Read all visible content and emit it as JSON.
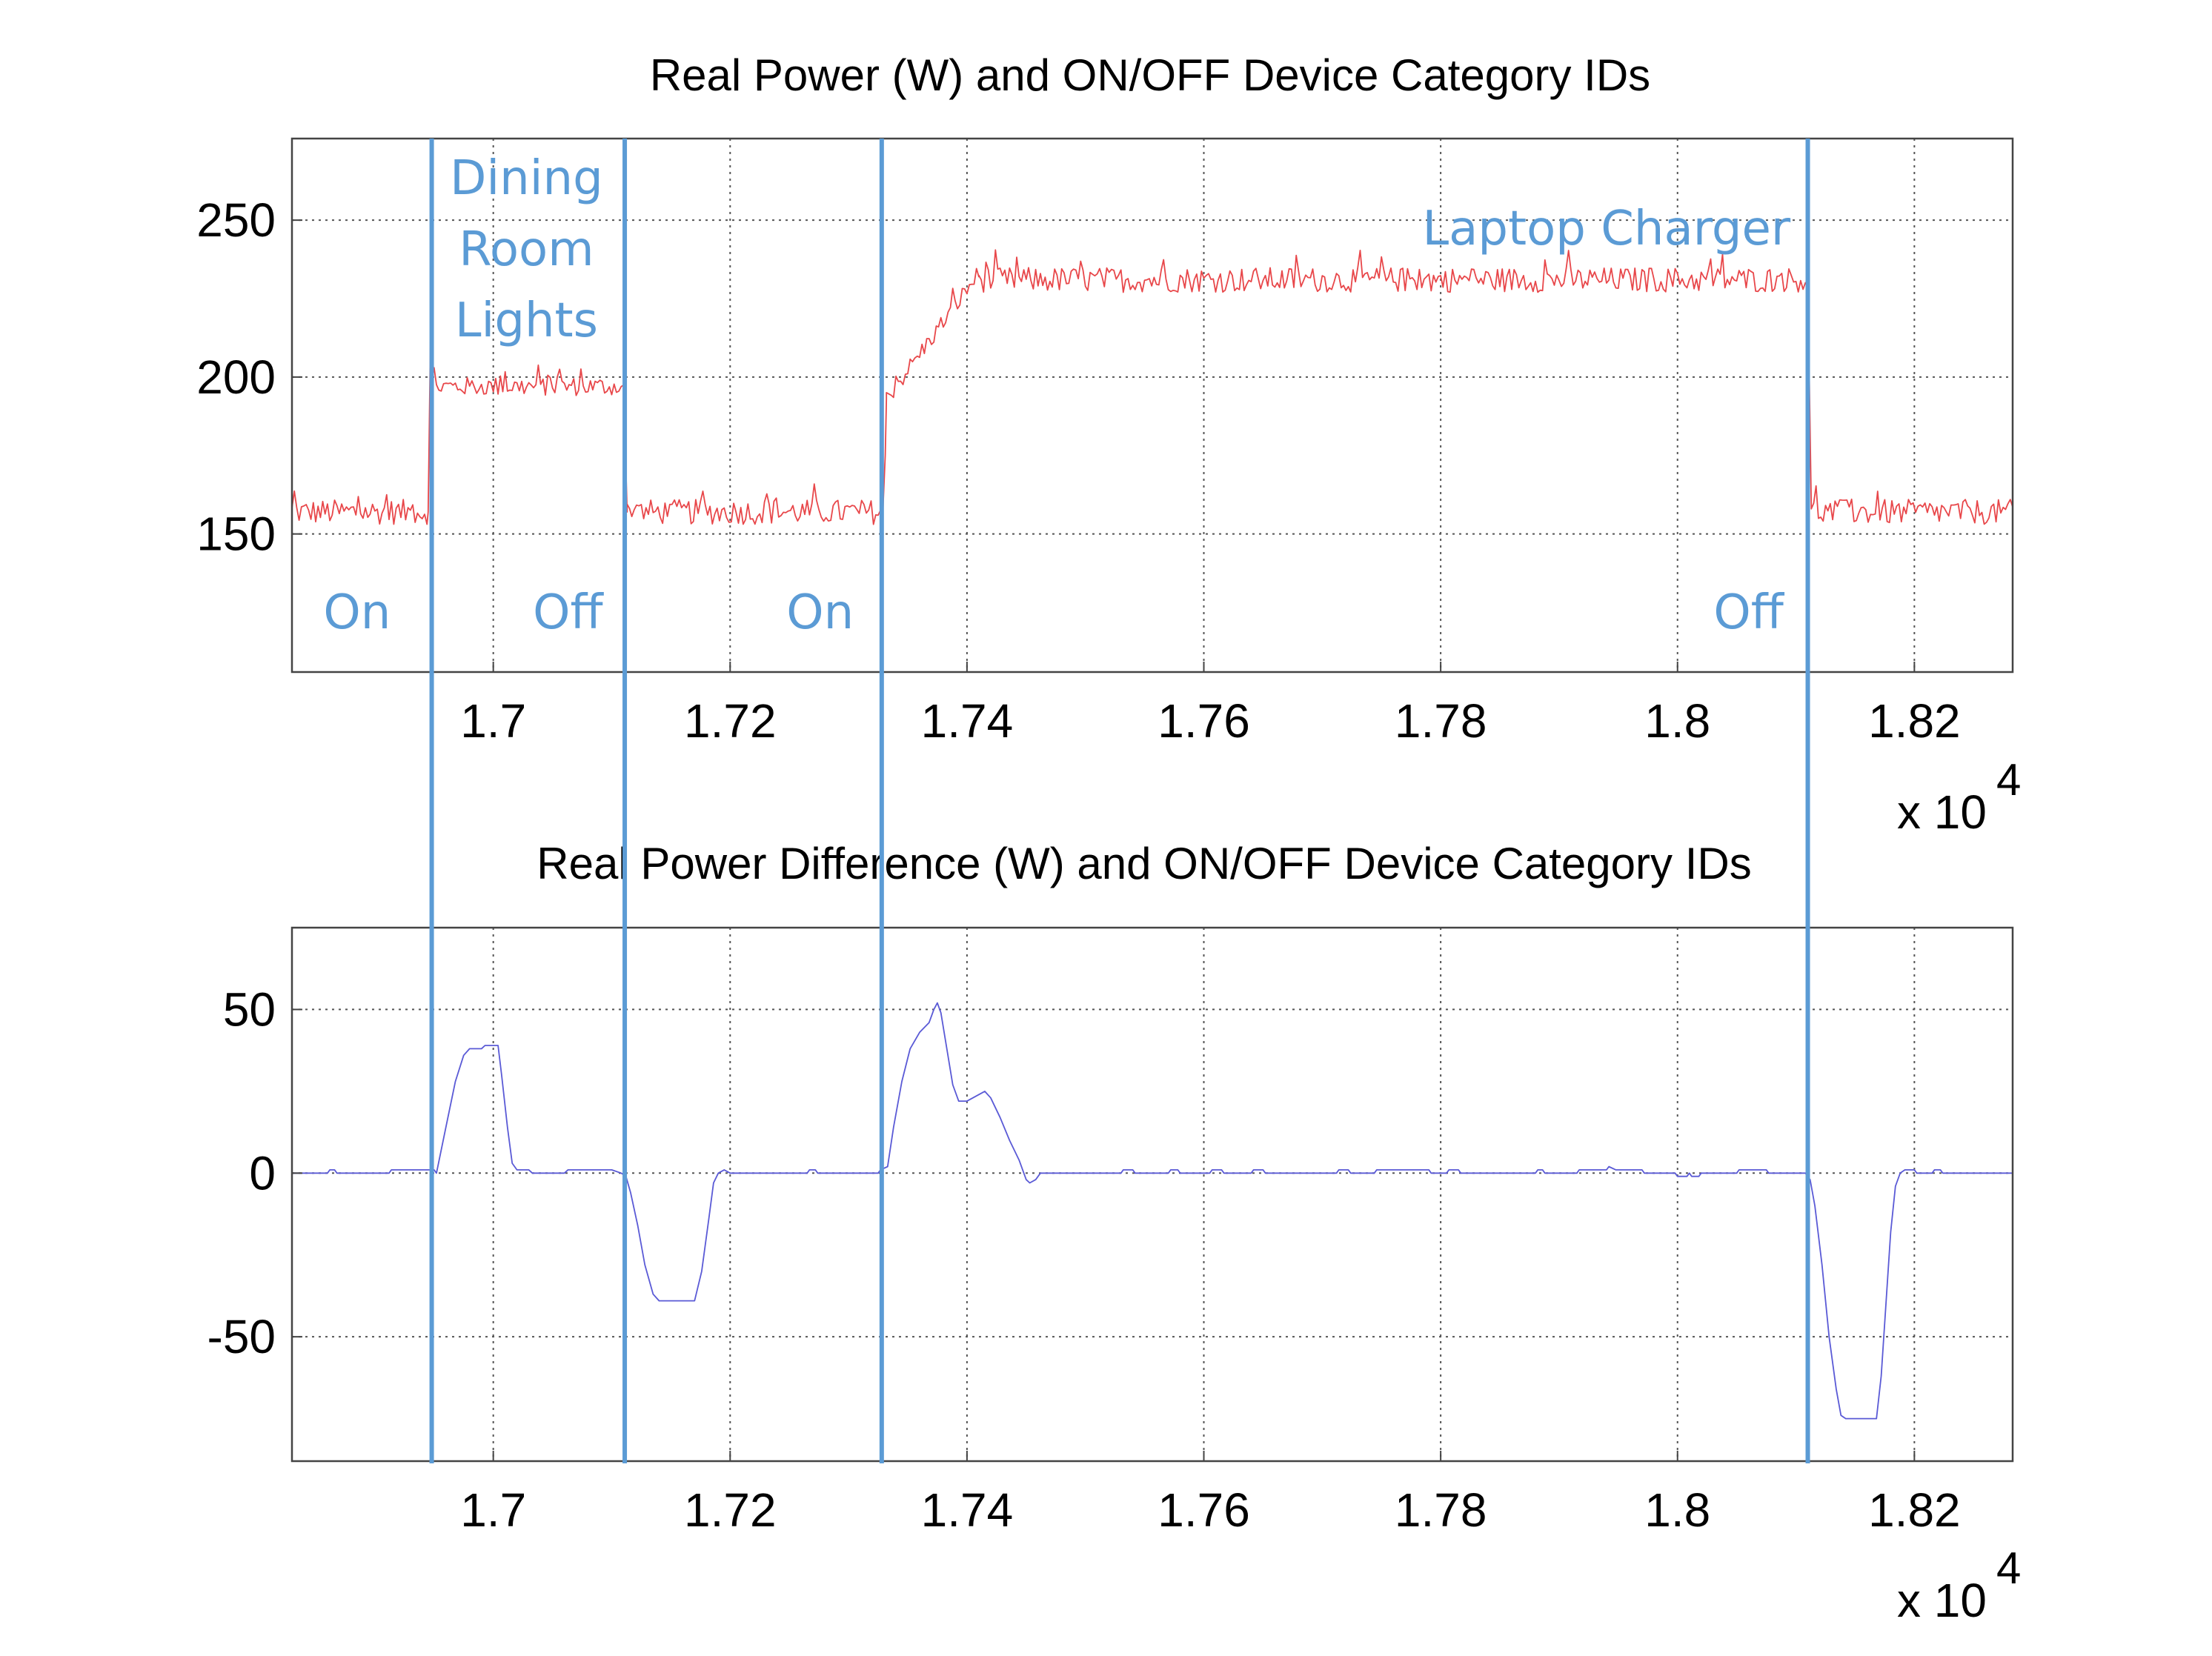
{
  "chart_data": [
    {
      "type": "line",
      "title": "Real Power (W) and ON/OFF Device Category IDs",
      "xlim": [
        16830,
        18283
      ],
      "ylim": [
        106,
        276
      ],
      "x_ticks": [
        "1.7",
        "1.72",
        "1.74",
        "1.76",
        "1.78",
        "1.8",
        "1.82"
      ],
      "x_tick_values": [
        17000,
        17200,
        17400,
        17600,
        17800,
        18000,
        18200
      ],
      "y_ticks": [
        "150",
        "200",
        "250"
      ],
      "y_tick_values": [
        150,
        200,
        250
      ],
      "x_multiplier": "x 10",
      "x_multiplier_exp": "4",
      "grid": true,
      "series": [
        {
          "color": "#e8474a",
          "segments": [
            {
              "x": [
                16830,
                16945
              ],
              "level": 157,
              "noise": 4
            },
            {
              "x": [
                16945,
                16947
              ],
              "values": [
                157,
                214
              ]
            },
            {
              "x": [
                16948,
                17110
              ],
              "level": 197,
              "noise": 3
            },
            {
              "x": [
                17110,
                17113
              ],
              "values": [
                197,
                157
              ]
            },
            {
              "x": [
                17113,
                17330
              ],
              "level": 157,
              "noise": 4
            },
            {
              "x": [
                17331,
                17332
              ],
              "values": [
                175,
                193
              ]
            },
            {
              "x": [
                17332,
                17410
              ],
              "ramp": [
                193,
                233
              ],
              "noise": 3
            },
            {
              "x": [
                17410,
                18110
              ],
              "level": 231,
              "noise": 4
            },
            {
              "x": [
                18110,
                18113
              ],
              "values": [
                231,
                158
              ]
            },
            {
              "x": [
                18113,
                18283
              ],
              "level": 157,
              "noise": 4
            }
          ]
        }
      ]
    },
    {
      "type": "line",
      "title": "Real Power Difference (W) and ON/OFF Device Category IDs",
      "xlim": [
        16830,
        18283
      ],
      "ylim": [
        -88,
        75
      ],
      "x_ticks": [
        "1.7",
        "1.72",
        "1.74",
        "1.76",
        "1.78",
        "1.8",
        "1.82"
      ],
      "x_tick_values": [
        17000,
        17200,
        17400,
        17600,
        17800,
        18000,
        18200
      ],
      "y_ticks": [
        "50",
        "0",
        "-50"
      ],
      "y_tick_values": [
        50,
        0,
        -50
      ],
      "x_multiplier": "x 10",
      "x_multiplier_exp": "4",
      "grid": true,
      "series": [
        {
          "color": "#5a5ad6",
          "points": [
            [
              16830,
              0
            ],
            [
              16860,
              0
            ],
            [
              16862,
              1
            ],
            [
              16866,
              1
            ],
            [
              16868,
              0
            ],
            [
              16912,
              0
            ],
            [
              16914,
              1
            ],
            [
              16950,
              1
            ],
            [
              16952,
              0
            ],
            [
              16960,
              14
            ],
            [
              16968,
              28
            ],
            [
              16975,
              36
            ],
            [
              16980,
              38
            ],
            [
              16990,
              38
            ],
            [
              16993,
              39
            ],
            [
              17004,
              39
            ],
            [
              17007,
              30
            ],
            [
              17012,
              14
            ],
            [
              17016,
              3
            ],
            [
              17020,
              1
            ],
            [
              17030,
              1
            ],
            [
              17033,
              0
            ],
            [
              17060,
              0
            ],
            [
              17063,
              1
            ],
            [
              17100,
              1
            ],
            [
              17108,
              0
            ],
            [
              17112,
              -1
            ],
            [
              17116,
              -6
            ],
            [
              17122,
              -16
            ],
            [
              17128,
              -28
            ],
            [
              17135,
              -37
            ],
            [
              17140,
              -39
            ],
            [
              17170,
              -39
            ],
            [
              17176,
              -30
            ],
            [
              17182,
              -14
            ],
            [
              17186,
              -3
            ],
            [
              17190,
              0
            ],
            [
              17195,
              1
            ],
            [
              17200,
              0
            ],
            [
              17265,
              0
            ],
            [
              17267,
              1
            ],
            [
              17272,
              1
            ],
            [
              17274,
              0
            ],
            [
              17325,
              0
            ],
            [
              17327,
              1
            ],
            [
              17333,
              2
            ],
            [
              17338,
              14
            ],
            [
              17345,
              28
            ],
            [
              17352,
              38
            ],
            [
              17360,
              43
            ],
            [
              17368,
              46
            ],
            [
              17372,
              50
            ],
            [
              17375,
              52
            ],
            [
              17378,
              49
            ],
            [
              17383,
              38
            ],
            [
              17388,
              27
            ],
            [
              17393,
              22
            ],
            [
              17400,
              22
            ],
            [
              17405,
              23
            ],
            [
              17410,
              24
            ],
            [
              17415,
              25
            ],
            [
              17420,
              23
            ],
            [
              17428,
              17
            ],
            [
              17436,
              10
            ],
            [
              17444,
              4
            ],
            [
              17450,
              -2
            ],
            [
              17453,
              -3
            ],
            [
              17458,
              -2
            ],
            [
              17462,
              0
            ],
            [
              17530,
              0
            ],
            [
              17532,
              1
            ],
            [
              17540,
              1
            ],
            [
              17542,
              0
            ],
            [
              17570,
              0
            ],
            [
              17572,
              1
            ],
            [
              17578,
              1
            ],
            [
              17580,
              0
            ],
            [
              17605,
              0
            ],
            [
              17607,
              1
            ],
            [
              17615,
              1
            ],
            [
              17617,
              0
            ],
            [
              17640,
              0
            ],
            [
              17642,
              1
            ],
            [
              17650,
              1
            ],
            [
              17652,
              0
            ],
            [
              17712,
              0
            ],
            [
              17714,
              1
            ],
            [
              17722,
              1
            ],
            [
              17724,
              0
            ],
            [
              17744,
              0
            ],
            [
              17746,
              1
            ],
            [
              17790,
              1
            ],
            [
              17792,
              0
            ],
            [
              17805,
              0
            ],
            [
              17807,
              1
            ],
            [
              17815,
              1
            ],
            [
              17817,
              0
            ],
            [
              17880,
              0
            ],
            [
              17882,
              1
            ],
            [
              17886,
              1
            ],
            [
              17888,
              0
            ],
            [
              17915,
              0
            ],
            [
              17917,
              1
            ],
            [
              17940,
              1
            ],
            [
              17942,
              2
            ],
            [
              17948,
              1
            ],
            [
              17970,
              1
            ],
            [
              17972,
              0
            ],
            [
              17998,
              0
            ],
            [
              18000,
              -1
            ],
            [
              18008,
              -1
            ],
            [
              18010,
              0
            ],
            [
              18012,
              -1
            ],
            [
              18018,
              -1
            ],
            [
              18020,
              0
            ],
            [
              18050,
              0
            ],
            [
              18052,
              1
            ],
            [
              18075,
              1
            ],
            [
              18077,
              0
            ],
            [
              18108,
              0
            ],
            [
              18112,
              -2
            ],
            [
              18116,
              -10
            ],
            [
              18122,
              -28
            ],
            [
              18128,
              -50
            ],
            [
              18134,
              -66
            ],
            [
              18138,
              -74
            ],
            [
              18142,
              -75
            ],
            [
              18168,
              -75
            ],
            [
              18172,
              -62
            ],
            [
              18176,
              -40
            ],
            [
              18180,
              -18
            ],
            [
              18184,
              -4
            ],
            [
              18188,
              0
            ],
            [
              18192,
              1
            ],
            [
              18200,
              1
            ],
            [
              18202,
              0
            ],
            [
              18215,
              0
            ],
            [
              18217,
              1
            ],
            [
              18222,
              1
            ],
            [
              18224,
              0
            ],
            [
              18283,
              0
            ]
          ]
        }
      ]
    }
  ],
  "events": {
    "color": "#5b9bd5",
    "lines_x": [
      16948,
      17111,
      17328,
      18110
    ],
    "labels": [
      {
        "text": "On",
        "x": 16885
      },
      {
        "text": "Off",
        "x": 17063
      },
      {
        "text": "On",
        "x": 17276
      },
      {
        "text": "Off",
        "x": 18060
      }
    ],
    "devices": [
      {
        "lines": [
          "Dining",
          "Room",
          "Lights"
        ],
        "x": 17028
      },
      {
        "lines": [
          "Laptop Charger"
        ],
        "x": 17940
      }
    ]
  }
}
